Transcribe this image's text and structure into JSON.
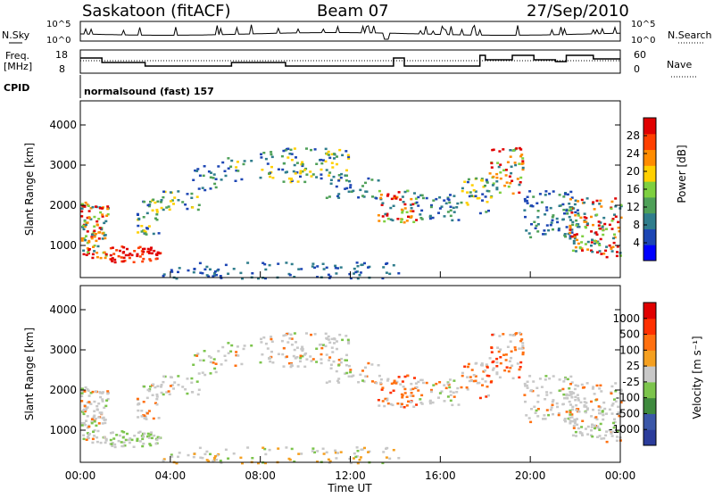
{
  "header": {
    "station": "Saskatoon (fitACF)",
    "beam": "Beam 07",
    "date": "27/Sep/2010"
  },
  "panels": {
    "noise": {
      "left_label": "N.Sky",
      "right_label": "N.Search",
      "left_ticks": [
        "10^5",
        "10^0"
      ],
      "right_ticks": [
        "10^5",
        "10^0"
      ]
    },
    "freq": {
      "left_label_1": "Freq.",
      "left_label_2": "[MHz]",
      "right_label": "Nave",
      "left_ticks": [
        "18",
        "8"
      ],
      "right_ticks": [
        "60",
        "0"
      ]
    },
    "cpid": {
      "label": "CPID",
      "value": "normalsound (fast) 157"
    }
  },
  "colors": {
    "power_scale": [
      "#0000ff",
      "#1d46b4",
      "#2f7d8c",
      "#4ea058",
      "#7ed040",
      "#ffd000",
      "#ff8c00",
      "#ff4000",
      "#e00000"
    ],
    "velocity_scale": [
      "#2b3c9b",
      "#3b57a8",
      "#3f8a3e",
      "#7cc44c",
      "#c8c8c8",
      "#f5a020",
      "#ff7010",
      "#ff3000",
      "#e00000"
    ]
  },
  "chart_data": [
    {
      "type": "heatmap",
      "id": "power",
      "title": "",
      "ylabel": "Slant Range [km]",
      "ylim": [
        200,
        4600
      ],
      "yticks": [
        "4000",
        "3000",
        "2000",
        "1000"
      ],
      "colorbar_label": "Power [dB]",
      "colorbar_ticks": [
        "28",
        "24",
        "20",
        "16",
        "12",
        "8",
        "4"
      ]
    },
    {
      "type": "heatmap",
      "id": "velocity",
      "title": "",
      "ylabel": "Slant Range [km]",
      "ylim": [
        200,
        4600
      ],
      "yticks": [
        "4000",
        "3000",
        "2000",
        "1000"
      ],
      "colorbar_label": "Velocity [m s⁻¹]",
      "colorbar_ticks": [
        "1000",
        "500",
        "100",
        "25",
        "-25",
        "-100",
        "-500",
        "-1000"
      ],
      "xlabel": "Time UT",
      "xticks": [
        "00:00",
        "04:00",
        "08:00",
        "12:00",
        "16:00",
        "20:00",
        "00:00"
      ]
    }
  ]
}
